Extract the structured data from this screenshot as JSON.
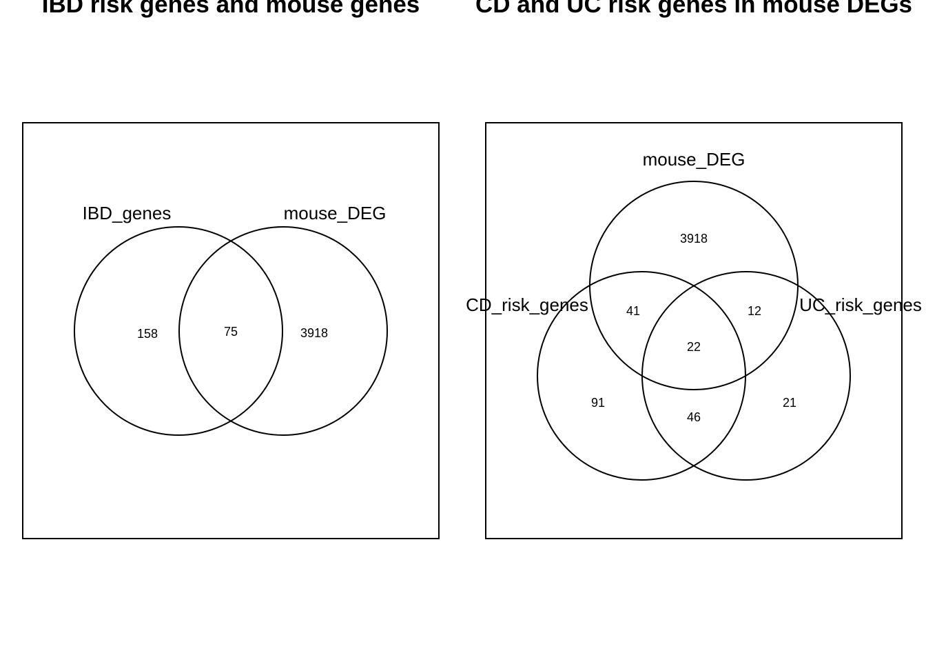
{
  "panels": [
    {
      "title": "IBD risk genes and mouse genes",
      "sets": [
        "IBD_genes",
        "mouse_DEG"
      ],
      "counts": {
        "only_IBD_genes": "158",
        "IBD_genes_and_mouse_DEG": "75",
        "only_mouse_DEG": "3918"
      }
    },
    {
      "title": "CD and UC risk genes in mouse DEGs",
      "sets": [
        "mouse_DEG",
        "CD_risk_genes",
        "UC_risk_genes"
      ],
      "counts": {
        "only_mouse_DEG": "3918",
        "mouse_DEG_and_CD": "41",
        "mouse_DEG_and_UC": "12",
        "all_three": "22",
        "only_CD": "91",
        "CD_and_UC": "46",
        "only_UC": "21"
      }
    }
  ],
  "colors": {
    "stroke": "#000000",
    "background": "#ffffff"
  }
}
